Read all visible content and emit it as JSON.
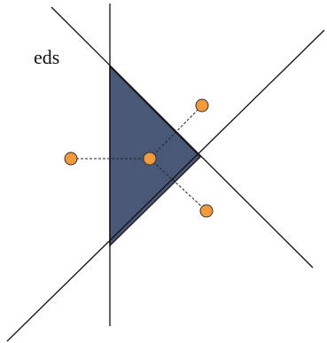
{
  "label": "eds"
}
